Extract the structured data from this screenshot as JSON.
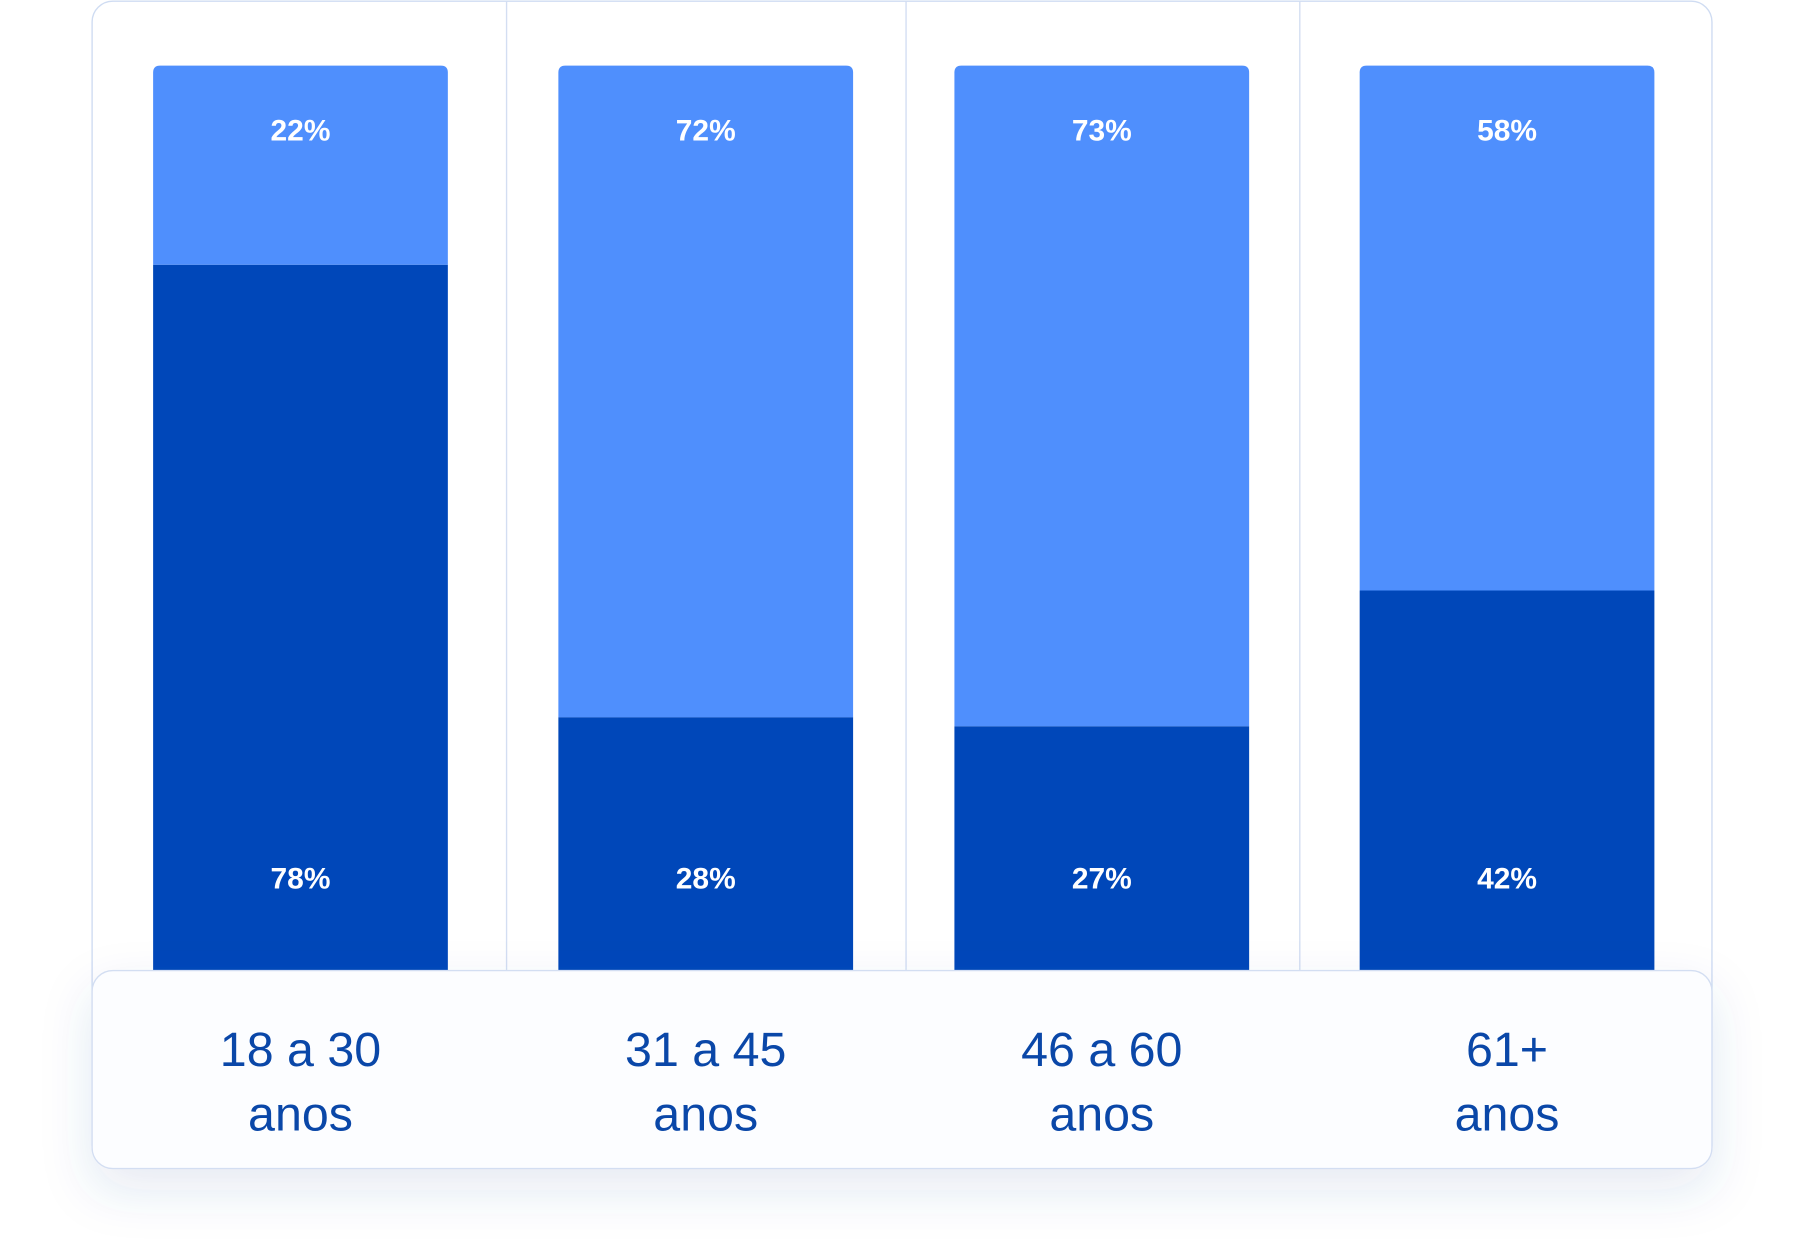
{
  "chart_data": {
    "type": "stacked-bar",
    "categories": [
      "18 a 30 anos",
      "31 a 45 anos",
      "46 a 60 anos",
      "61+ anos"
    ],
    "series": [
      {
        "color": "#0047b9",
        "values": [
          78,
          28,
          27,
          42
        ],
        "value_labels": [
          "78%",
          "28%",
          "27%",
          "42%"
        ]
      },
      {
        "color": "#4f8ffd",
        "values": [
          22,
          72,
          73,
          58
        ],
        "value_labels": [
          "22%",
          "72%",
          "73%",
          "58%"
        ]
      }
    ],
    "ylim": [
      0,
      100
    ]
  }
}
